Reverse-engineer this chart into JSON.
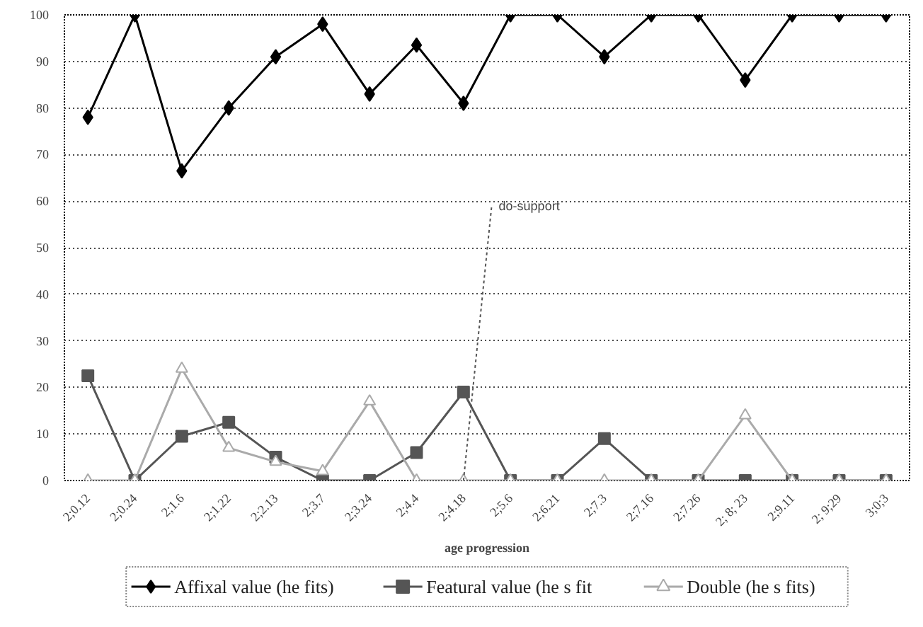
{
  "chart_data": {
    "type": "line",
    "xlabel": "age progression",
    "categories": [
      "2;0.12",
      "2;0.24",
      "2;1.6",
      "2;1.22",
      "2;2.13",
      "2;3.7",
      "2;3.24",
      "2;4.4",
      "2;4.18",
      "2;5.6",
      "2;6.21",
      "2;7.3",
      "2;7.16",
      "2;7.26",
      "2; 8; 23",
      "2;9.11",
      "2; 9;29",
      "3;0;3"
    ],
    "series": [
      {
        "name": "Affixal value (he fits)",
        "color": "#000000",
        "marker": "diamond",
        "values": [
          78,
          100,
          66.5,
          80,
          91,
          98,
          83,
          93.5,
          81,
          100,
          100,
          91,
          100,
          100,
          86,
          100,
          100,
          100
        ]
      },
      {
        "name": "Featural value (he s fit",
        "color": "#555555",
        "marker": "square",
        "values": [
          22.5,
          0,
          9.5,
          12.5,
          5,
          0,
          0,
          6,
          19,
          0,
          0,
          9,
          0,
          0,
          0,
          0,
          0,
          0
        ]
      },
      {
        "name": "Double (he s fits)",
        "color": "#aaaaaa",
        "marker": "triangle",
        "values": [
          0,
          0,
          24,
          7,
          4,
          2,
          17,
          0,
          0,
          0,
          0,
          0,
          0,
          0,
          14,
          0,
          0,
          0
        ]
      }
    ],
    "ylim": [
      0,
      100
    ],
    "yticks": [
      0,
      10,
      20,
      30,
      40,
      50,
      60,
      70,
      80,
      90,
      100
    ],
    "grid": "y",
    "legend": "bottom",
    "annotations": [
      {
        "text": "do-support",
        "x": "2;4.18",
        "y": 0
      }
    ]
  }
}
